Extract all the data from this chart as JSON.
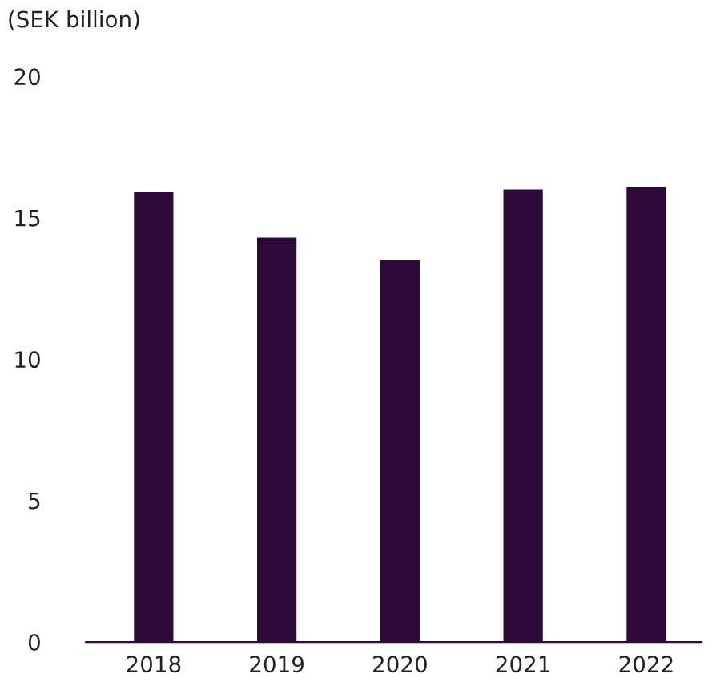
{
  "chart_data": {
    "type": "bar",
    "ylabel": "(SEK billion)",
    "categories": [
      "2018",
      "2019",
      "2020",
      "2021",
      "2022"
    ],
    "values": [
      15.9,
      14.3,
      13.5,
      16.0,
      16.1
    ],
    "color": "#2d0a3a",
    "ylim": [
      0,
      20
    ],
    "yticks": [
      0,
      5,
      10,
      15,
      20
    ],
    "grid": false
  }
}
